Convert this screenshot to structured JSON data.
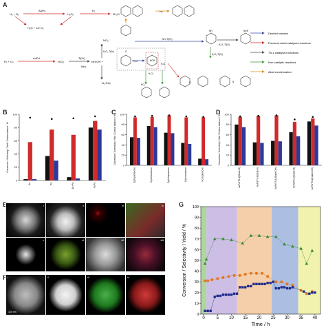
{
  "panels": {
    "A": "A",
    "B": "B",
    "C": "C",
    "D": "D",
    "E": "E",
    "F": "F",
    "G": "G"
  },
  "scheme": {
    "top_r1": "H₂ + O₂",
    "top_cat1": "AuPd",
    "top_p1": "H₂O₂",
    "top_h2": "H₂",
    "top_p2": "2H₂O",
    "top_p3": "H₂O + 1/2 O₂",
    "mid_r": "H₂ + O₂",
    "mid_cat": "AuPd",
    "mid_p1": "H₂O₂",
    "mid_ti": "Ti(IV)",
    "mid_nh3": "NH₃",
    "mid_nh2oh": "NH₂OH +",
    "no3": "NO₃⁻",
    "h2o2_ti_a": "H₂O₂ Ti(IV)",
    "n2": "N₂ NOₓ",
    "nh3_ti": "NH₃ Ti(IV)",
    "h2o2_ti_b": "H₂O₂ Ti(IV)",
    "h2o": "H₂O",
    "h2o_b": "H₂O",
    "h2o2_b": "H₂O₂",
    "h2_top": "H₂",
    "h2o2_ti_c": "H₂O₂ Ti(IV)",
    "no2": "NO₂",
    "noh_a": "NOH",
    "noh_b": "NOH",
    "nh": "NH",
    "o_a": "O",
    "o_b": "O",
    "nn": "N",
    "legend": [
      {
        "label": "Desired reaction",
        "color": "#3b4aa8"
      },
      {
        "label": "Precious metal catalysed reactions",
        "color": "#d02a2a"
      },
      {
        "label": "TS-1 catalysed reactions",
        "color": "#4a4a4a"
      },
      {
        "label": "Non-catalytic reactions",
        "color": "#3a9a3a"
      },
      {
        "label": "Aldol condensation",
        "color": "#e08a1a"
      }
    ]
  },
  "microscopy": {
    "E_labels": [
      "i",
      "ii",
      "iii",
      "iv",
      "v",
      "vi",
      "vii",
      "viii"
    ],
    "F_labels": [
      "i",
      "ii",
      "iii",
      "iv"
    ],
    "F_scale": "100 nm"
  },
  "colors": {
    "conversion": "#111111",
    "selectivity": "#d02a2a",
    "carbon_balance": "#2b3a9a",
    "green": "#3a8a3a",
    "orange": "#e07820",
    "navy": "#1f2a8a"
  },
  "chart_data": [
    {
      "panel": "B",
      "type": "bar",
      "ylabel": "Conversion / Selectivity / Yield / Carbon balance / %",
      "ylim": [
        0,
        100
      ],
      "yticks": [
        0,
        20,
        40,
        60,
        80,
        100
      ],
      "categories": [
        "Au",
        "Pd",
        "Au+Pd",
        "AuPd"
      ],
      "series": [
        {
          "color": "#111111",
          "values": [
            2,
            37,
            5,
            80
          ]
        },
        {
          "color": "#d02a2a",
          "values": [
            58,
            77,
            69,
            90
          ]
        },
        {
          "color": "#2b3a9a",
          "values": [
            2,
            30,
            3,
            77
          ]
        }
      ],
      "markers": [
        {
          "category": "Au",
          "value": 95
        },
        {
          "category": "Pd",
          "value": 93
        },
        {
          "category": "Au+Pd",
          "value": 94
        },
        {
          "category": "AuPd",
          "value": 97
        }
      ]
    },
    {
      "panel": "C",
      "type": "bar",
      "ylabel": "Conversion / Selectivity / Yield / Carbon balance / %",
      "ylim": [
        0,
        100
      ],
      "yticks": [
        0,
        20,
        40,
        60,
        80,
        100
      ],
      "categories": [
        "Cyclopentanone",
        "Cyclohexanone",
        "Cycloheptanone",
        "Cyclooctanone",
        "Acetophenone"
      ],
      "series": [
        {
          "color": "#111111",
          "values": [
            55,
            77,
            64,
            44,
            13
          ]
        },
        {
          "color": "#d02a2a",
          "values": [
            94,
            95,
            98,
            94,
            94
          ]
        },
        {
          "color": "#2b3a9a",
          "values": [
            54,
            75,
            63,
            42,
            12
          ]
        }
      ],
      "markers": [
        {
          "category": "Cyclopentanone",
          "value": 96
        },
        {
          "category": "Cyclohexanone",
          "value": 97
        },
        {
          "category": "Cycloheptanone",
          "value": 98
        },
        {
          "category": "Cyclooctanone",
          "value": 96
        },
        {
          "category": "Acetophenone",
          "value": 95
        }
      ]
    },
    {
      "panel": "D",
      "type": "bar",
      "ylabel": "Conversion / Selectivity / Yield / Carbon balance / %",
      "ylim": [
        0,
        100
      ],
      "yticks": [
        0,
        20,
        40,
        60,
        80,
        100
      ],
      "categories": [
        "AuPd/TS-1(Oxide-O)",
        "AuPd/TS-1(Oxide-I)",
        "AuPd/TS-1(Oxide-OH)",
        "AuPd/TS-1(Iodate-O)",
        "AuPd/TS-1(Iodate-OH)"
      ],
      "series": [
        {
          "color": "#111111",
          "values": [
            80,
            45,
            48,
            65,
            86
          ]
        },
        {
          "color": "#d02a2a",
          "values": [
            95,
            97,
            98,
            85,
            92
          ]
        },
        {
          "color": "#2b3a9a",
          "values": [
            75,
            44,
            47,
            57,
            78
          ]
        }
      ],
      "markers": [
        {
          "category": "AuPd/TS-1(Oxide-O)",
          "value": 96
        },
        {
          "category": "AuPd/TS-1(Oxide-I)",
          "value": 97
        },
        {
          "category": "AuPd/TS-1(Oxide-OH)",
          "value": 98
        },
        {
          "category": "AuPd/TS-1(Iodate-O)",
          "value": 90
        },
        {
          "category": "AuPd/TS-1(Iodate-OH)",
          "value": 95
        }
      ]
    },
    {
      "panel": "G",
      "type": "scatter",
      "xlabel": "Time / h",
      "ylabel": "Conversion / Selectivity / Yield / %",
      "xlim": [
        -1,
        42
      ],
      "ylim": [
        0,
        100
      ],
      "xticks": [
        0,
        5,
        10,
        15,
        20,
        25,
        30,
        35,
        40
      ],
      "yticks": [
        0,
        10,
        20,
        30,
        40,
        50,
        60,
        70,
        80,
        90,
        100
      ],
      "bands": [
        {
          "from": -1,
          "to": 1,
          "color": "#9fd08a"
        },
        {
          "from": 1,
          "to": 12,
          "color": "#c3b3e0"
        },
        {
          "from": 12,
          "to": 24.5,
          "color": "#f2c79a"
        },
        {
          "from": 24.5,
          "to": 34,
          "color": "#9db3dc"
        },
        {
          "from": 34,
          "to": 42,
          "color": "#eef0a0"
        }
      ],
      "series": [
        {
          "marker": "triangle",
          "color": "#3a8a3a",
          "x": [
            0.5,
            1,
            4,
            7,
            10,
            14,
            17,
            20,
            23,
            26,
            29,
            32,
            35,
            37,
            39
          ],
          "y": [
            47,
            51,
            70,
            70,
            69,
            66,
            73,
            73,
            72,
            72,
            65,
            63,
            61,
            47,
            59
          ]
        },
        {
          "marker": "circle",
          "color": "#e07820",
          "x": [
            0.5,
            1.5,
            3,
            5,
            7,
            9,
            11,
            13,
            15,
            17,
            19,
            21,
            23,
            26,
            28,
            30,
            32,
            35,
            37,
            39
          ],
          "y": [
            31,
            31,
            32,
            33,
            34,
            35,
            36,
            36,
            37,
            38,
            38,
            38,
            35,
            30,
            30,
            28,
            27,
            22,
            19,
            21
          ]
        },
        {
          "marker": "square",
          "color": "#1f2a8a",
          "x": [
            0.5,
            1.5,
            2.5,
            4,
            5,
            6,
            7,
            8,
            9,
            10,
            11,
            12,
            13,
            14,
            15,
            16,
            17,
            18,
            19,
            20,
            21,
            22,
            23,
            24,
            25,
            26,
            27,
            28,
            29,
            30,
            31,
            32,
            36,
            38,
            39,
            40
          ],
          "y": [
            3,
            3,
            3,
            16,
            17,
            17,
            18,
            18,
            18,
            18,
            19,
            19,
            25,
            25,
            25,
            26,
            26,
            28,
            28,
            28,
            28,
            28,
            29,
            29,
            30,
            24,
            24,
            25,
            25,
            24,
            24,
            25,
            21,
            19,
            20,
            20
          ]
        }
      ]
    }
  ]
}
